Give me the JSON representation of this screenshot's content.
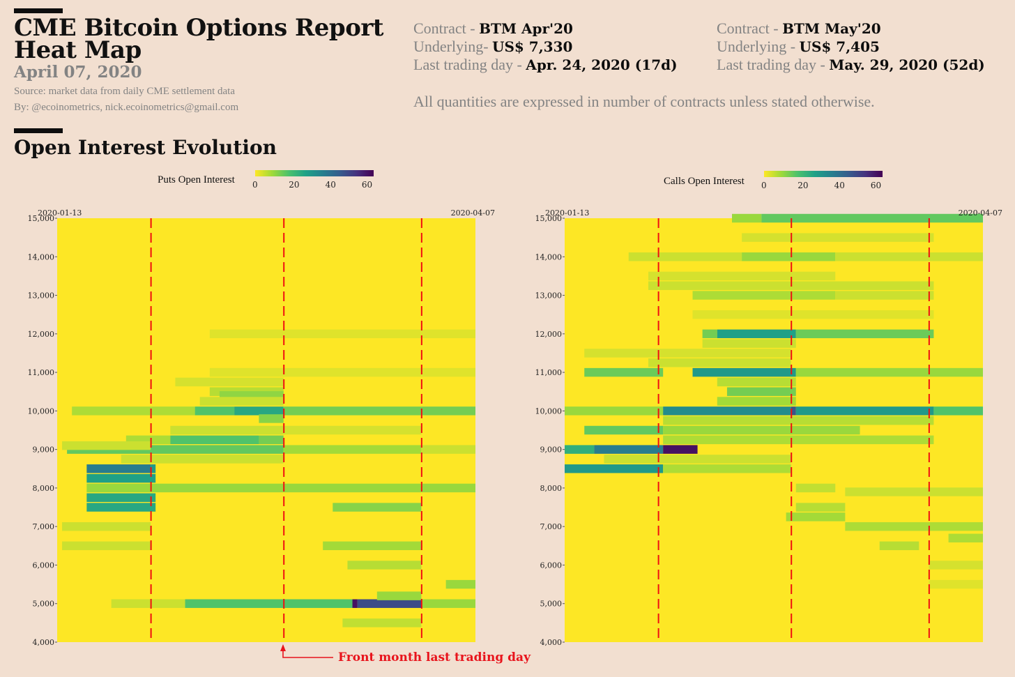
{
  "header": {
    "title_line1": "CME Bitcoin Options Report",
    "title_line2": "Heat Map",
    "date": "April 07, 2020",
    "source": "Source: market data from daily CME settlement data",
    "byline": "By: @ecoinometrics, nick.ecoinometrics@gmail.com",
    "section_title": "Open Interest Evolution",
    "note": "All quantities are expressed in number of contracts unless stated otherwise."
  },
  "contracts": [
    {
      "contract_label": "Contract - ",
      "contract_value": "BTM Apr'20",
      "underlying_label": "Underlying- ",
      "underlying_value": "US$ 7,330",
      "ltd_label": "Last trading day - ",
      "ltd_value": "Apr. 24, 2020 (17d)"
    },
    {
      "contract_label": "Contract - ",
      "contract_value": "BTM May'20",
      "underlying_label": "Underlying - ",
      "underlying_value": "US$ 7,405",
      "ltd_label": "Last trading day - ",
      "ltd_value": "May. 29, 2020 (52d)"
    }
  ],
  "annotation": "Front month last trading day",
  "chart_data": [
    {
      "type": "heatmap",
      "title": "Puts Open Interest",
      "x_start": "2020-01-13",
      "x_end": "2020-04-07",
      "x_days": 85,
      "ylim": [
        4000,
        15000
      ],
      "yticks": [
        4000,
        5000,
        6000,
        7000,
        8000,
        9000,
        10000,
        11000,
        12000,
        13000,
        14000,
        15000
      ],
      "ytick_labels": [
        "4,000",
        "5,000",
        "6,000",
        "7,000",
        "8,000",
        "9,000",
        "10,000",
        "11,000",
        "12,000",
        "13,000",
        "14,000",
        "15,000"
      ],
      "color_scale": {
        "min": 0,
        "max": 65,
        "ticks": [
          0,
          20,
          40,
          60
        ],
        "palette": "viridis-reversed"
      },
      "expiry_lines_day": [
        19,
        46,
        74
      ],
      "segments_note": "each segment: [strike, start_day, end_day, open_interest]",
      "segments": [
        [
          12000,
          31,
          85,
          3
        ],
        [
          11000,
          31,
          85,
          3
        ],
        [
          10750,
          24,
          46,
          4
        ],
        [
          10500,
          31,
          46,
          7
        ],
        [
          10400,
          33,
          46,
          11
        ],
        [
          10250,
          29,
          46,
          5
        ],
        [
          10000,
          3,
          28,
          8
        ],
        [
          10000,
          28,
          36,
          18
        ],
        [
          10000,
          36,
          46,
          26
        ],
        [
          10000,
          46,
          85,
          14
        ],
        [
          9800,
          41,
          46,
          12
        ],
        [
          9500,
          23,
          46,
          5
        ],
        [
          9500,
          46,
          74,
          4
        ],
        [
          9250,
          14,
          23,
          8
        ],
        [
          9250,
          23,
          41,
          18
        ],
        [
          9250,
          41,
          46,
          14
        ],
        [
          9000,
          2,
          46,
          16
        ],
        [
          9000,
          46,
          74,
          9
        ],
        [
          9000,
          74,
          85,
          5
        ],
        [
          9100,
          1,
          19,
          5
        ],
        [
          8750,
          13,
          46,
          5
        ],
        [
          8500,
          6,
          19,
          38
        ],
        [
          8500,
          19,
          20,
          30
        ],
        [
          8250,
          6,
          20,
          28
        ],
        [
          8000,
          6,
          85,
          10
        ],
        [
          7750,
          6,
          20,
          26
        ],
        [
          7500,
          6,
          20,
          26
        ],
        [
          7500,
          56,
          74,
          12
        ],
        [
          7000,
          1,
          19,
          5
        ],
        [
          6500,
          1,
          19,
          5
        ],
        [
          6500,
          54,
          74,
          9
        ],
        [
          6000,
          59,
          74,
          7
        ],
        [
          5500,
          79,
          85,
          10
        ],
        [
          5000,
          11,
          26,
          5
        ],
        [
          5000,
          26,
          60,
          18
        ],
        [
          5000,
          60,
          61,
          62
        ],
        [
          5000,
          61,
          74,
          50
        ],
        [
          5000,
          74,
          85,
          10
        ],
        [
          4500,
          58,
          74,
          6
        ],
        [
          5200,
          65,
          74,
          10
        ]
      ]
    },
    {
      "type": "heatmap",
      "title": "Calls Open Interest",
      "x_start": "2020-01-13",
      "x_end": "2020-04-07",
      "x_days": 85,
      "ylim": [
        4000,
        15000
      ],
      "yticks": [
        4000,
        5000,
        6000,
        7000,
        8000,
        9000,
        10000,
        11000,
        12000,
        13000,
        14000,
        15000
      ],
      "ytick_labels": [
        "4,000",
        "5,000",
        "6,000",
        "7,000",
        "8,000",
        "9,000",
        "10,000",
        "11,000",
        "12,000",
        "13,000",
        "14,000",
        "15,000"
      ],
      "color_scale": {
        "min": 0,
        "max": 65,
        "ticks": [
          0,
          20,
          40,
          60
        ],
        "palette": "viridis-reversed"
      },
      "expiry_lines_day": [
        19,
        46,
        74
      ],
      "segments_note": "each segment: [strike, start_day, end_day, open_interest]",
      "segments": [
        [
          15000,
          34,
          40,
          10
        ],
        [
          15000,
          40,
          85,
          16
        ],
        [
          14500,
          36,
          75,
          4
        ],
        [
          14000,
          13,
          36,
          5
        ],
        [
          14000,
          36,
          55,
          10
        ],
        [
          14000,
          55,
          85,
          5
        ],
        [
          13500,
          17,
          55,
          4
        ],
        [
          13250,
          17,
          75,
          5
        ],
        [
          13000,
          26,
          55,
          8
        ],
        [
          13000,
          55,
          75,
          5
        ],
        [
          12500,
          26,
          75,
          3
        ],
        [
          12000,
          28,
          31,
          14
        ],
        [
          12000,
          31,
          47,
          28
        ],
        [
          12000,
          47,
          75,
          15
        ],
        [
          11750,
          28,
          47,
          5
        ],
        [
          11500,
          4,
          46,
          4
        ],
        [
          11250,
          17,
          46,
          5
        ],
        [
          11000,
          4,
          20,
          15
        ],
        [
          11000,
          26,
          47,
          30
        ],
        [
          11000,
          47,
          85,
          10
        ],
        [
          10750,
          31,
          47,
          7
        ],
        [
          10500,
          33,
          47,
          14
        ],
        [
          10250,
          31,
          47,
          9
        ],
        [
          10000,
          0,
          20,
          10
        ],
        [
          10000,
          20,
          46,
          34
        ],
        [
          10000,
          46,
          47,
          48
        ],
        [
          10000,
          47,
          75,
          30
        ],
        [
          10000,
          75,
          85,
          18
        ],
        [
          9750,
          20,
          75,
          7
        ],
        [
          9500,
          4,
          20,
          16
        ],
        [
          9500,
          20,
          60,
          10
        ],
        [
          9250,
          20,
          75,
          8
        ],
        [
          9000,
          0,
          6,
          24
        ],
        [
          9000,
          6,
          20,
          38
        ],
        [
          9000,
          20,
          27,
          62
        ],
        [
          8750,
          8,
          46,
          5
        ],
        [
          8500,
          0,
          20,
          30
        ],
        [
          8500,
          20,
          46,
          8
        ],
        [
          8000,
          47,
          55,
          6
        ],
        [
          7900,
          57,
          85,
          5
        ],
        [
          7500,
          47,
          57,
          7
        ],
        [
          7250,
          45,
          57,
          9
        ],
        [
          7000,
          57,
          85,
          8
        ],
        [
          6700,
          78,
          85,
          8
        ],
        [
          6500,
          64,
          72,
          7
        ],
        [
          6000,
          74,
          85,
          4
        ],
        [
          5500,
          74,
          85,
          3
        ]
      ]
    }
  ]
}
